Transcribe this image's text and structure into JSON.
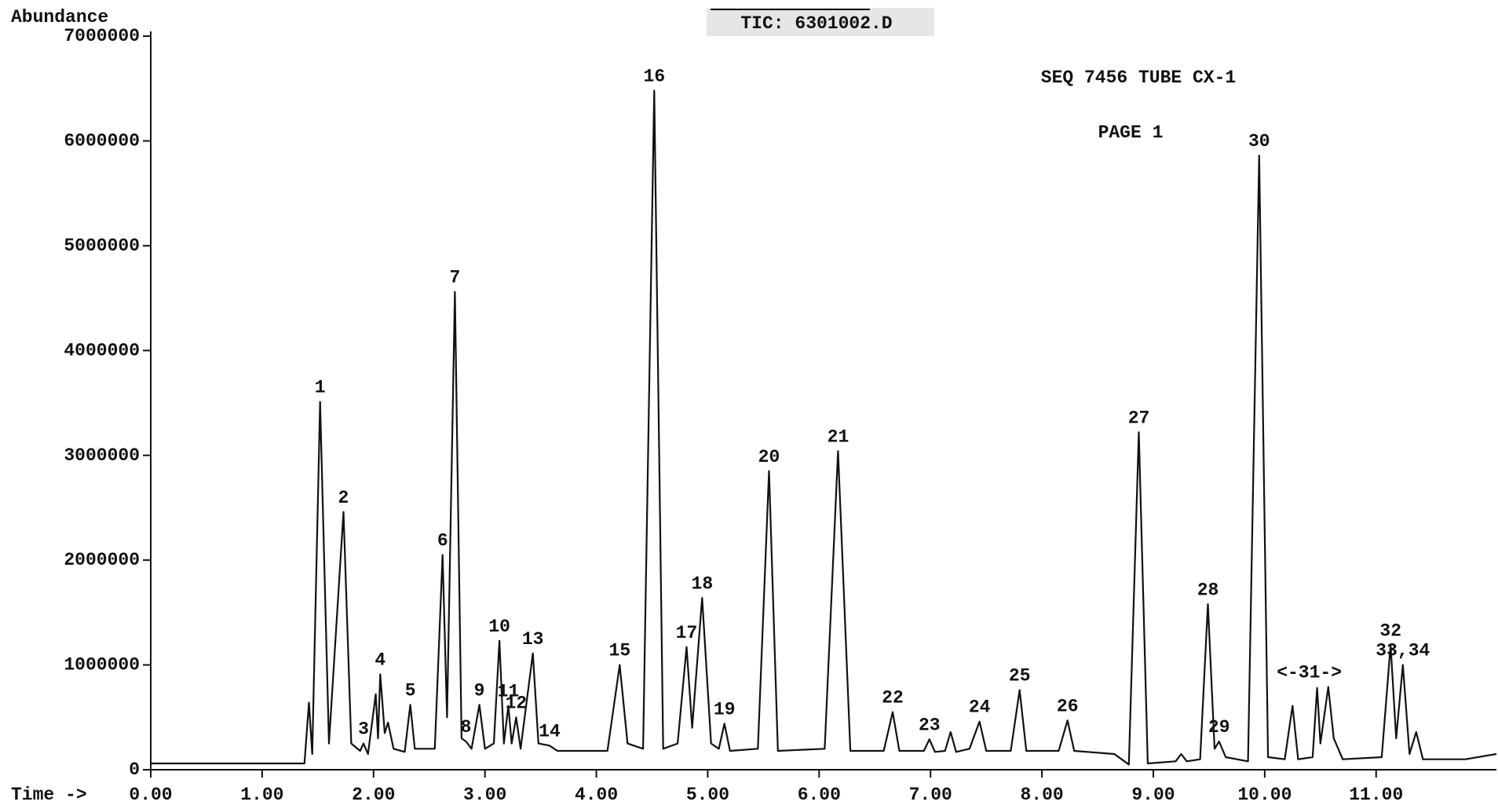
{
  "chart_data": {
    "type": "line",
    "title": "TIC: 6301002.D",
    "annotations": [
      "SEQ 7456 TUBE CX-1",
      "PAGE 1"
    ],
    "y_label": "Abundance",
    "x_label": "Time ->",
    "xlim": [
      0,
      12.08
    ],
    "ylim": [
      0,
      7000000
    ],
    "xticks": [
      {
        "value": 0,
        "label": "0.00"
      },
      {
        "value": 1,
        "label": "1.00"
      },
      {
        "value": 2,
        "label": "2.00"
      },
      {
        "value": 3,
        "label": "3.00"
      },
      {
        "value": 4,
        "label": "4.00"
      },
      {
        "value": 5,
        "label": "5.00"
      },
      {
        "value": 6,
        "label": "6.00"
      },
      {
        "value": 7,
        "label": "7.00"
      },
      {
        "value": 8,
        "label": "8.00"
      },
      {
        "value": 9,
        "label": "9.00"
      },
      {
        "value": 10,
        "label": "10.00"
      },
      {
        "value": 11,
        "label": "11.00"
      }
    ],
    "yticks": [
      0,
      1000000,
      2000000,
      3000000,
      4000000,
      5000000,
      6000000,
      7000000
    ],
    "color": "#111111",
    "x": [
      0,
      1.38,
      1.42,
      1.45,
      1.52,
      1.6,
      1.73,
      1.8,
      1.88,
      1.91,
      1.95,
      2.02,
      2.04,
      2.06,
      2.1,
      2.13,
      2.18,
      2.28,
      2.33,
      2.37,
      2.55,
      2.62,
      2.66,
      2.73,
      2.79,
      2.83,
      2.88,
      2.95,
      3.0,
      3.08,
      3.13,
      3.17,
      3.21,
      3.24,
      3.28,
      3.32,
      3.43,
      3.48,
      3.58,
      3.65,
      4.1,
      4.21,
      4.28,
      4.42,
      4.52,
      4.6,
      4.73,
      4.81,
      4.86,
      4.95,
      5.03,
      5.1,
      5.15,
      5.2,
      5.45,
      5.55,
      5.63,
      6.05,
      6.17,
      6.28,
      6.58,
      6.66,
      6.72,
      6.94,
      6.99,
      7.04,
      7.13,
      7.18,
      7.23,
      7.35,
      7.44,
      7.5,
      7.72,
      7.8,
      7.86,
      8.15,
      8.23,
      8.29,
      8.65,
      8.78,
      8.87,
      8.95,
      9.2,
      9.25,
      9.3,
      9.42,
      9.49,
      9.55,
      9.59,
      9.65,
      9.85,
      9.95,
      10.03,
      10.18,
      10.25,
      10.3,
      10.43,
      10.47,
      10.5,
      10.57,
      10.62,
      10.7,
      11.05,
      11.13,
      11.18,
      11.24,
      11.3,
      11.36,
      11.42,
      11.8,
      12.08
    ],
    "values": [
      60000,
      60000,
      640000,
      150000,
      3510000,
      250000,
      2460000,
      250000,
      180000,
      250000,
      150000,
      720000,
      300000,
      910000,
      350000,
      450000,
      200000,
      170000,
      620000,
      200000,
      200000,
      2050000,
      500000,
      4560000,
      300000,
      270000,
      200000,
      620000,
      200000,
      250000,
      1230000,
      250000,
      610000,
      250000,
      500000,
      200000,
      1110000,
      250000,
      230000,
      180000,
      180000,
      1000000,
      250000,
      200000,
      6480000,
      200000,
      250000,
      1170000,
      400000,
      1640000,
      250000,
      200000,
      440000,
      180000,
      200000,
      2850000,
      180000,
      200000,
      3040000,
      180000,
      180000,
      550000,
      180000,
      180000,
      290000,
      170000,
      180000,
      360000,
      170000,
      200000,
      460000,
      180000,
      180000,
      760000,
      180000,
      180000,
      470000,
      180000,
      150000,
      50000,
      3220000,
      60000,
      80000,
      150000,
      80000,
      100000,
      1580000,
      200000,
      270000,
      120000,
      80000,
      5860000,
      120000,
      100000,
      610000,
      100000,
      120000,
      780000,
      250000,
      790000,
      300000,
      100000,
      120000,
      1190000,
      300000,
      1000000,
      150000,
      360000,
      100000,
      100000,
      150000
    ],
    "peaks": [
      {
        "label": "1",
        "x": 1.52,
        "y": 3510000
      },
      {
        "label": "2",
        "x": 1.73,
        "y": 2460000
      },
      {
        "label": "3",
        "x": 1.91,
        "y": 250000
      },
      {
        "label": "4",
        "x": 2.06,
        "y": 910000
      },
      {
        "label": "5",
        "x": 2.33,
        "y": 620000
      },
      {
        "label": "6",
        "x": 2.62,
        "y": 2050000
      },
      {
        "label": "7",
        "x": 2.73,
        "y": 4560000
      },
      {
        "label": "8",
        "x": 2.83,
        "y": 270000
      },
      {
        "label": "9",
        "x": 2.95,
        "y": 620000
      },
      {
        "label": "10",
        "x": 3.13,
        "y": 1230000
      },
      {
        "label": "11",
        "x": 3.21,
        "y": 610000
      },
      {
        "label": "12",
        "x": 3.28,
        "y": 500000
      },
      {
        "label": "13",
        "x": 3.43,
        "y": 1110000
      },
      {
        "label": "14",
        "x": 3.58,
        "y": 230000
      },
      {
        "label": "15",
        "x": 4.21,
        "y": 1000000
      },
      {
        "label": "16",
        "x": 4.52,
        "y": 6480000
      },
      {
        "label": "17",
        "x": 4.81,
        "y": 1170000
      },
      {
        "label": "18",
        "x": 4.95,
        "y": 1640000
      },
      {
        "label": "19",
        "x": 5.15,
        "y": 440000
      },
      {
        "label": "20",
        "x": 5.55,
        "y": 2850000
      },
      {
        "label": "21",
        "x": 6.17,
        "y": 3040000
      },
      {
        "label": "22",
        "x": 6.66,
        "y": 550000
      },
      {
        "label": "23",
        "x": 6.99,
        "y": 290000
      },
      {
        "label": "24",
        "x": 7.44,
        "y": 460000
      },
      {
        "label": "25",
        "x": 7.8,
        "y": 760000
      },
      {
        "label": "26",
        "x": 8.23,
        "y": 470000
      },
      {
        "label": "27",
        "x": 8.87,
        "y": 3220000
      },
      {
        "label": "28",
        "x": 9.49,
        "y": 1580000
      },
      {
        "label": "29",
        "x": 9.59,
        "y": 270000
      },
      {
        "label": "30",
        "x": 9.95,
        "y": 5860000
      },
      {
        "label": "<-31->",
        "x": 10.4,
        "y": 790000
      },
      {
        "label": "32",
        "x": 11.13,
        "y": 1190000
      },
      {
        "label": "33,34",
        "x": 11.24,
        "y": 1000000
      }
    ]
  }
}
